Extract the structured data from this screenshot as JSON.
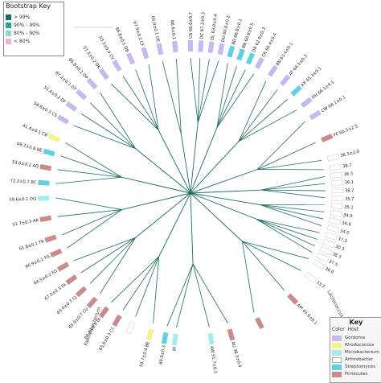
{
  "bootstrap_key": {
    "title": "Bootstrap Key",
    "items": [
      {
        "label": "> 99%",
        "color": "#1d6b60"
      },
      {
        "label": "90% - 99%",
        "color": "#2ea38c"
      },
      {
        "label": "80% - 90%",
        "color": "#8fd6c6"
      },
      {
        "label": "< 80%",
        "color": "#f3b3c0"
      }
    ]
  },
  "host_key": {
    "title": "Key",
    "col_color": "Color",
    "col_host": "Host",
    "items": [
      {
        "host": "Gordonia",
        "color": "#c7b9f0"
      },
      {
        "host": "Rhodococcus",
        "color": "#f4f28a"
      },
      {
        "host": "Microbacterium",
        "color": "#a6ecec"
      },
      {
        "host": "Arthrobacter",
        "color": "#ffffff"
      },
      {
        "host": "Streptomyces",
        "color": "#5fd1e0"
      },
      {
        "host": "Firmicutes",
        "color": "#c98c8c"
      }
    ]
  },
  "branch_color": "#1d6b60",
  "outer_labels": [
    "Faecalibacterium",
    "Lactococcus"
  ],
  "leaves": [
    {
      "angle": 90,
      "cluster": "CA",
      "value": "66.6±0.7",
      "host": "Gordonia"
    },
    {
      "angle": 86,
      "cluster": "DC",
      "value": "67.2±0.3",
      "host": "Gordonia"
    },
    {
      "angle": 82,
      "cluster": "DL",
      "value": "63.0±0.4",
      "host": "Gordonia"
    },
    {
      "angle": 78,
      "cluster": "DU",
      "value": "60.6±0.2",
      "host": "Gordonia"
    },
    {
      "angle": 74,
      "cluster": "BD",
      "value": "66.8±0.1",
      "host": "Streptomyces"
    },
    {
      "angle": 70,
      "cluster": "BB",
      "value": "60.9±0.5",
      "host": "Streptomyces"
    },
    {
      "angle": 66,
      "cluster": "DR",
      "value": "62.9±0.3",
      "host": "Streptomyces"
    },
    {
      "angle": 62,
      "cluster": "CR",
      "value": "66.4±0.4",
      "host": "Gordonia"
    },
    {
      "angle": 56,
      "cluster": "BN",
      "value": "63.4±0.1",
      "host": "Gordonia"
    },
    {
      "angle": 50,
      "cluster": "AT",
      "value": "64.1±0.3",
      "host": "Gordonia"
    },
    {
      "angle": 44,
      "cluster": "AX",
      "value": "65.3±0.1",
      "host": "Streptomyces"
    },
    {
      "angle": 38,
      "cluster": "DH",
      "value": "66.1±0.1",
      "host": "Gordonia"
    },
    {
      "angle": 32,
      "cluster": "CW",
      "value": "68.1±0.1",
      "host": "Gordonia"
    },
    {
      "angle": 22,
      "cluster": "FE",
      "value": "66.5±2.5",
      "host": "Firmicutes"
    },
    {
      "angle": 14,
      "cluster": "",
      "value": "38.3±2.0",
      "host": "Arthrobacter"
    },
    {
      "angle": 10,
      "cluster": "",
      "value": "38.7",
      "host": "Arthrobacter"
    },
    {
      "angle": 7,
      "cluster": "",
      "value": "36.3",
      "host": "Arthrobacter"
    },
    {
      "angle": 4,
      "cluster": "",
      "value": "36.1",
      "host": "Arthrobacter"
    },
    {
      "angle": 1,
      "cluster": "",
      "value": "38.7",
      "host": "Arthrobacter"
    },
    {
      "angle": -2,
      "cluster": "",
      "value": "35.7",
      "host": "Arthrobacter"
    },
    {
      "angle": -5,
      "cluster": "",
      "value": "35.1",
      "host": "Arthrobacter"
    },
    {
      "angle": -8,
      "cluster": "",
      "value": "34.9",
      "host": "Arthrobacter"
    },
    {
      "angle": -11,
      "cluster": "",
      "value": "34.6",
      "host": "Arthrobacter"
    },
    {
      "angle": -14,
      "cluster": "",
      "value": "34.0",
      "host": "Arthrobacter"
    },
    {
      "angle": -17,
      "cluster": "",
      "value": "37.3",
      "host": "Arthrobacter"
    },
    {
      "angle": -20,
      "cluster": "",
      "value": "30.3",
      "host": "Arthrobacter"
    },
    {
      "angle": -23,
      "cluster": "",
      "value": "38.3",
      "host": "Arthrobacter"
    },
    {
      "angle": -26,
      "cluster": "",
      "value": "37.5",
      "host": "Arthrobacter"
    },
    {
      "angle": -29,
      "cluster": "",
      "value": "38.0",
      "host": "Arthrobacter"
    },
    {
      "angle": -35,
      "cluster": "",
      "value": "33.7",
      "host": "Arthrobacter"
    },
    {
      "angle": -46,
      "cluster": "AM",
      "value": "43.9±0.1",
      "host": "Firmicutes"
    },
    {
      "angle": -62,
      "cluster": "",
      "value": "",
      "host": "Firmicutes"
    },
    {
      "angle": -74,
      "cluster": "AU",
      "value": "38.3±0.4",
      "host": "Firmicutes"
    },
    {
      "angle": -82,
      "cluster": "AW",
      "value": "51.7±0.3",
      "host": "Microbacterium"
    },
    {
      "angle": -96,
      "cluster": "BI",
      "value": "",
      "host": "Microbacterium"
    },
    {
      "angle": -100,
      "cluster": "",
      "value": "69.9±0.3",
      "host": "Streptomyces"
    },
    {
      "angle": -106,
      "cluster": "BE",
      "value": "59.7±0.4",
      "host": "Rhodococcus"
    },
    {
      "angle": -114,
      "cluster": "",
      "value": "",
      "host": "Arthrobacter"
    },
    {
      "angle": -120,
      "cluster": "CC",
      "value": "65.6±0.3",
      "host": "Firmicutes"
    },
    {
      "angle": -126,
      "cluster": "DI",
      "value": "64.8±0.9",
      "host": "Firmicutes"
    },
    {
      "angle": -132,
      "cluster": "CU",
      "value": "65.9±0.7",
      "host": "Firmicutes"
    },
    {
      "angle": -138,
      "cluster": "CJ",
      "value": "63.0±0.7",
      "host": "Firmicutes"
    },
    {
      "angle": -144,
      "cluster": "FA",
      "value": "67.0±0.3",
      "host": "Firmicutes"
    },
    {
      "angle": -150,
      "cluster": "FD",
      "value": "64.5±0.2",
      "host": "Firmicutes"
    },
    {
      "angle": -156,
      "cluster": "FG",
      "value": "66.9±0.1",
      "host": "Firmicutes"
    },
    {
      "angle": -162,
      "cluster": "FK",
      "value": "61.8±0.1",
      "host": "Firmicutes"
    },
    {
      "angle": -170,
      "cluster": "AR",
      "value": "51.7±0.3",
      "host": "Firmicutes"
    },
    {
      "angle": -178,
      "cluster": "DQ",
      "value": "59.6±0.1",
      "host": "Microbacterium"
    },
    {
      "angle": 176,
      "cluster": "BC",
      "value": "72.2±0.7",
      "host": "Streptomyces"
    },
    {
      "angle": 170,
      "cluster": "AQ",
      "value": "53.0±0.2",
      "host": "Firmicutes"
    },
    {
      "angle": 164,
      "cluster": "BE",
      "value": "49.7±0.8",
      "host": "Streptomyces"
    },
    {
      "angle": 158,
      "cluster": "CB",
      "value": "41.4±0.1",
      "host": "Rhodococcus"
    },
    {
      "angle": 150,
      "cluster": "CS",
      "value": "54.8±0.3",
      "host": "Gordonia"
    },
    {
      "angle": 144,
      "cluster": "DF",
      "value": "51.4±0.2",
      "host": "Gordonia"
    },
    {
      "angle": 138,
      "cluster": "DT",
      "value": "67.2±0.1",
      "host": "Gordonia"
    },
    {
      "angle": 132,
      "cluster": "DP",
      "value": "66.8±0.1",
      "host": "Gordonia"
    },
    {
      "angle": 126,
      "cluster": "DK",
      "value": "57.3±0.2",
      "host": "Gordonia"
    },
    {
      "angle": 120,
      "cluster": "CV",
      "value": "53.3±0.4",
      "host": "Gordonia"
    },
    {
      "angle": 114,
      "cluster": "DB",
      "value": "66.8±0.1",
      "host": "Gordonia"
    },
    {
      "angle": 108,
      "cluster": "CF",
      "value": "67.9±0.2",
      "host": "Gordonia"
    },
    {
      "angle": 102,
      "cluster": "DE",
      "value": "65.0±0.1",
      "host": "Gordonia"
    },
    {
      "angle": 96,
      "cluster": "",
      "value": "66.6±0.1",
      "host": "Gordonia"
    }
  ]
}
